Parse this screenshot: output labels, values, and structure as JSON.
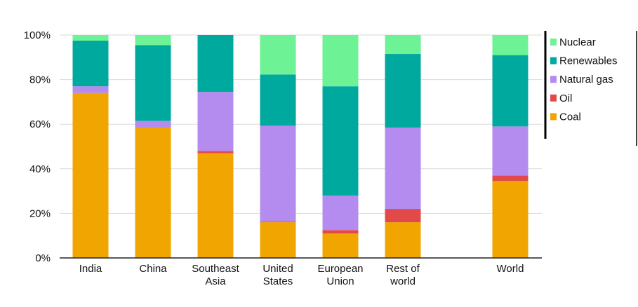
{
  "chart_data": {
    "type": "bar",
    "stacked": true,
    "categories": [
      "India",
      "China",
      "Southeast Asia",
      "United States",
      "European Union",
      "Rest of world",
      "World"
    ],
    "category_lines": [
      [
        "India"
      ],
      [
        "China"
      ],
      [
        "Southeast",
        "Asia"
      ],
      [
        "United",
        "States"
      ],
      [
        "European",
        "Union"
      ],
      [
        "Rest of",
        "world"
      ],
      [
        "World"
      ]
    ],
    "series": [
      {
        "name": "Coal",
        "color": "#f0a500",
        "values": [
          74,
          58.5,
          47,
          16,
          11,
          16,
          34.5
        ]
      },
      {
        "name": "Oil",
        "color": "#e24a4a",
        "values": [
          0,
          0,
          1,
          0.3,
          1.5,
          6,
          2.5
        ]
      },
      {
        "name": "Natural gas",
        "color": "#b48bef",
        "values": [
          3,
          3,
          26.5,
          43,
          15.5,
          36.5,
          22
        ]
      },
      {
        "name": "Renewables",
        "color": "#00a99d",
        "values": [
          20.5,
          34,
          25.5,
          23,
          49,
          33,
          32
        ]
      },
      {
        "name": "Nuclear",
        "color": "#6ef296",
        "values": [
          2.5,
          4.5,
          0,
          17.7,
          23,
          8.5,
          9
        ]
      }
    ],
    "y_ticks": [
      "0%",
      "20%",
      "40%",
      "60%",
      "80%",
      "100%"
    ],
    "ylim": [
      0,
      100
    ],
    "grid": true,
    "legend": {
      "placement": "top-right",
      "order": [
        "Nuclear",
        "Renewables",
        "Natural gas",
        "Oil",
        "Coal"
      ]
    }
  }
}
